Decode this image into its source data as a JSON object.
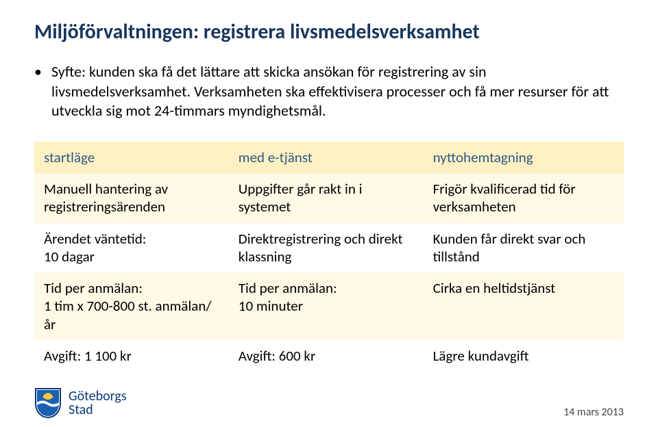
{
  "title": "Miljöförvaltningen: registrera livsmedelsverksamhet",
  "bullet": "Syfte: kunden ska få det lättare att skicka ansökan för registrering av sin livsmedelsverksamhet. Verksamheten ska effektivisera processer och få mer resurser för att utveckla sig mot 24-timmars myndighetsmål.",
  "table": {
    "header": {
      "c1": "startläge",
      "c2": "med e-tjänst",
      "c3": "nyttohemtagning"
    },
    "rows": [
      {
        "c1": "Manuell hantering av registreringsärenden",
        "c2": "Uppgifter går rakt in i systemet",
        "c3": "Frigör kvalificerad tid för verksamheten"
      },
      {
        "c1": "Ärendet väntetid:\n10 dagar",
        "c2": "Direktregistrering och direkt klassning",
        "c3": "Kunden får direkt svar och tillstånd"
      },
      {
        "c1": "Tid per anmälan:\n1 tim x 700-800 st. anmälan/år",
        "c2": "Tid per anmälan:\n10 minuter",
        "c3": "Cirka  en heltidstjänst"
      },
      {
        "c1": "Avgift: 1 100 kr",
        "c2": "Avgift: 600 kr",
        "c3": "Lägre kundavgift"
      }
    ]
  },
  "footer": {
    "city_line1": "Göteborgs",
    "city_line2": "Stad",
    "date": "14 mars 2013"
  },
  "colors": {
    "title": "#17365d",
    "header_bg": "#fff0c1",
    "header_text": "#2a5a8a",
    "row_alt_bg": "#fff9e6",
    "logo_text": "#0a3a7a"
  }
}
